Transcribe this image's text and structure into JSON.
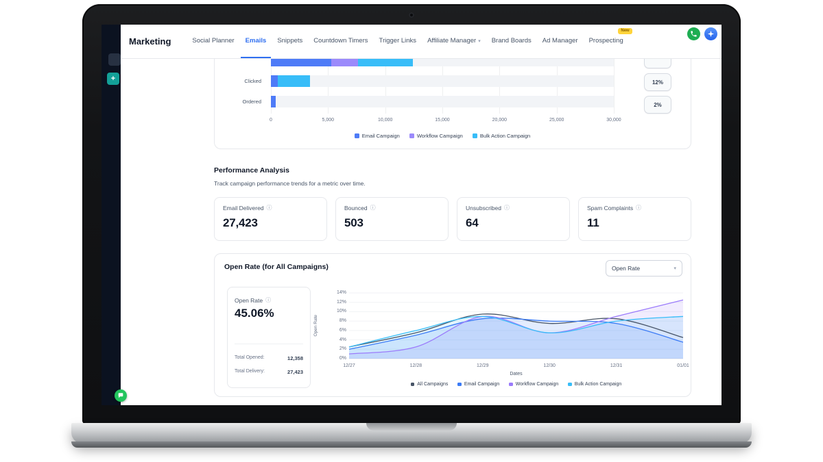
{
  "icons": {
    "caret_down": "▾",
    "plus": "+",
    "info": "ⓘ"
  },
  "header": {
    "title": "Marketing",
    "tabs": [
      {
        "label": "Social Planner"
      },
      {
        "label": "Emails",
        "active": true
      },
      {
        "label": "Snippets"
      },
      {
        "label": "Countdown Timers"
      },
      {
        "label": "Trigger Links"
      },
      {
        "label": "Affiliate Manager",
        "caret": true
      },
      {
        "label": "Brand Boards"
      },
      {
        "label": "Ad Manager"
      },
      {
        "label": "Prospecting",
        "badge": "New"
      }
    ]
  },
  "performance": {
    "title": "Performance Analysis",
    "subtitle": "Track campaign performance trends for a metric over time.",
    "stats": [
      {
        "label": "Email Delivered",
        "value": "27,423"
      },
      {
        "label": "Bounced",
        "value": "503"
      },
      {
        "label": "Unsubscribed",
        "value": "64"
      },
      {
        "label": "Spam Complaints",
        "value": "11"
      }
    ]
  },
  "open_rate": {
    "title": "Open Rate (for All Campaigns)",
    "dropdown_value": "Open Rate",
    "summary": {
      "label": "Open Rate",
      "value": "45.06%",
      "total_opened_label": "Total Opened:",
      "total_opened_value": "12,358",
      "total_delivery_label": "Total Delivery:",
      "total_delivery_value": "27,423"
    }
  },
  "chart_data": [
    {
      "id": "campaign-engagement-funnel",
      "type": "bar",
      "orientation": "horizontal",
      "stacked": true,
      "categories": [
        "",
        "Clicked",
        "Ordered"
      ],
      "series": [
        {
          "name": "Email Campaign",
          "color": "#4e7bf7",
          "values": [
            5300,
            600,
            400
          ]
        },
        {
          "name": "Workflow Campaign",
          "color": "#9b8afb",
          "values": [
            2300,
            0,
            0
          ]
        },
        {
          "name": "Bulk Action Campaign",
          "color": "#38bdf8",
          "values": [
            4800,
            2800,
            0
          ]
        }
      ],
      "xlim": [
        0,
        30000
      ],
      "x_ticks": [
        "0",
        "5,000",
        "10,000",
        "15,000",
        "20,000",
        "25,000",
        "30,000"
      ],
      "rate_badges": [
        "",
        "12%",
        "2%"
      ],
      "grid": true,
      "legend_position": "bottom"
    },
    {
      "id": "open-rate-trend",
      "type": "area",
      "x": [
        "12/27",
        "12/28",
        "12/29",
        "12/30",
        "12/31",
        "01/01"
      ],
      "xlabel": "Dates",
      "ylabel": "Open Rate",
      "ylim": [
        0,
        14
      ],
      "y_ticks": [
        "0%",
        "2%",
        "4%",
        "6%",
        "8%",
        "10%",
        "12%",
        "14%"
      ],
      "grid": true,
      "legend_position": "bottom",
      "series": [
        {
          "name": "All Campaigns",
          "color": "#475467",
          "fill": false,
          "values": [
            2.5,
            5.5,
            9.5,
            7.5,
            8.5,
            4.5
          ]
        },
        {
          "name": "Email Campaign",
          "color": "#3b7bf6",
          "fill": true,
          "values": [
            2.0,
            5.0,
            8.5,
            8.0,
            7.5,
            3.5
          ]
        },
        {
          "name": "Workflow Campaign",
          "color": "#9b7bfb",
          "fill": true,
          "values": [
            1.0,
            2.5,
            9.0,
            5.5,
            9.0,
            12.5
          ]
        },
        {
          "name": "Bulk Action Campaign",
          "color": "#38bdf8",
          "fill": true,
          "values": [
            2.5,
            6.0,
            9.0,
            5.5,
            8.0,
            9.0
          ]
        }
      ]
    }
  ]
}
